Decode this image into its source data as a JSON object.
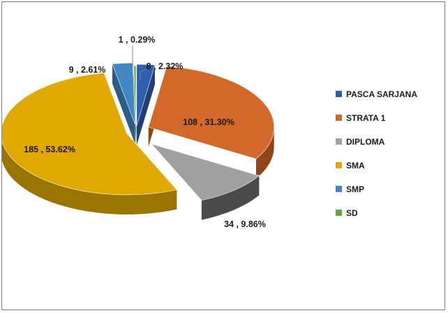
{
  "chart_data": {
    "type": "pie",
    "style": "3d-exploded",
    "legend_position": "right",
    "title": "",
    "categories": [
      "PASCA SARJANA",
      "STRATA 1",
      "DIPLOMA",
      "SMA",
      "SMP",
      "SD"
    ],
    "values": [
      8,
      108,
      34,
      185,
      9,
      1
    ],
    "percents": [
      2.32,
      31.3,
      9.86,
      53.62,
      2.61,
      0.29
    ],
    "data_labels": [
      "8 , 2.32%",
      "108 , 31.30%",
      "34 , 9.86%",
      "185 , 53.62%",
      "9 , 2.61%",
      "1 , 0.29%"
    ],
    "colors": [
      "#2e5fad",
      "#d2692a",
      "#a0a0a0",
      "#e0a800",
      "#3f88c5",
      "#62a83a"
    ],
    "side_colors": [
      "#1f3f75",
      "#8f4419",
      "#4a4a4a",
      "#9a7400",
      "#2a5d88",
      "#3f6e25"
    ]
  }
}
